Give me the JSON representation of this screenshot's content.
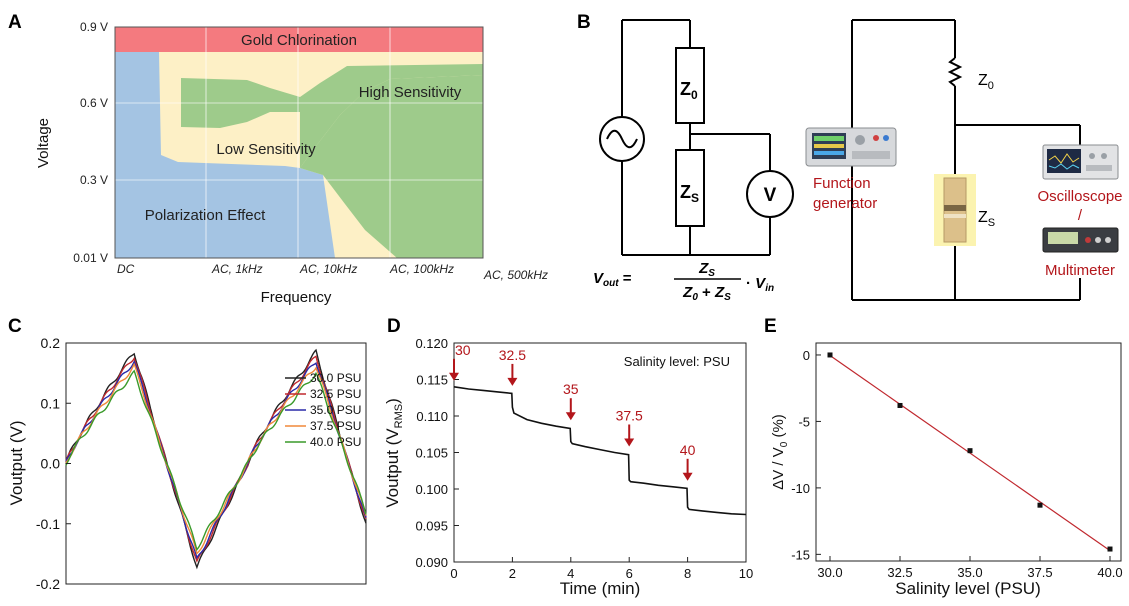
{
  "panels": {
    "A": "A",
    "B": "B",
    "C": "C",
    "D": "D",
    "E": "E"
  },
  "chart_data": [
    {
      "panel": "A",
      "type": "region-map",
      "xlabel": "Frequency",
      "ylabel": "Voltage",
      "xticks": [
        "DC",
        "AC, 1kHz",
        "AC, 10kHz",
        "AC, 100kHz",
        "AC, 500kHz"
      ],
      "yticks": [
        "0.01 V",
        "0.3 V",
        "0.6 V",
        "0.9 V"
      ],
      "regions": [
        {
          "name": "Gold Chlorination",
          "color": "#f47a7f"
        },
        {
          "name": "High Sensitivity",
          "color": "#9ecb8b"
        },
        {
          "name": "Low Sensitivity",
          "color": "#fdf0c6"
        },
        {
          "name": "Polarization Effect",
          "color": "#a4c4e3"
        }
      ]
    },
    {
      "panel": "B",
      "type": "diagram",
      "equation_lhs": "V",
      "equation_lhs_sub": "out",
      "equation_num": "Z",
      "equation_num_sub": "S",
      "equation_den_a": "Z",
      "equation_den_a_sub": "0",
      "equation_den_plus": " + ",
      "equation_den_b": "Z",
      "equation_den_b_sub": "S",
      "equation_vin": "V",
      "equation_vin_sub": "in",
      "z0": "Z",
      "z0_sub": "0",
      "zs": "Z",
      "zs_sub": "S",
      "voltmeter": "V",
      "function_generator": [
        "Function",
        "generator"
      ],
      "oscilloscope": [
        "Oscilloscope",
        "/",
        "Multimeter"
      ]
    },
    {
      "panel": "C",
      "type": "line",
      "ylabel": "Voutput (V)",
      "ylim": [
        -0.2,
        0.2
      ],
      "yticks": [
        "0.2",
        "0.1",
        "0.0",
        "-0.1",
        "-0.2"
      ],
      "series": [
        {
          "name": "30.0 PSU",
          "color": "#222222",
          "peak": 0.185,
          "trough": -0.172
        },
        {
          "name": "32.5 PSU",
          "color": "#c0282e",
          "peak": 0.178,
          "trough": -0.165
        },
        {
          "name": "35.0 PSU",
          "color": "#2a2aa8",
          "peak": 0.17,
          "trough": -0.16
        },
        {
          "name": "37.5 PSU",
          "color": "#f0883a",
          "peak": 0.162,
          "trough": -0.15
        },
        {
          "name": "40.0 PSU",
          "color": "#3a9a2a",
          "peak": 0.15,
          "trough": -0.14
        }
      ]
    },
    {
      "panel": "D",
      "type": "line",
      "xlabel": "Time (min)",
      "ylabel": "Voutput (V",
      "ylabel_sub": "RMS",
      "ylabel_end": ")",
      "xlim": [
        0,
        10
      ],
      "ylim": [
        0.09,
        0.12
      ],
      "xticks": [
        "0",
        "2",
        "4",
        "6",
        "8",
        "10"
      ],
      "yticks": [
        "0.120",
        "0.115",
        "0.110",
        "0.105",
        "0.100",
        "0.095",
        "0.090"
      ],
      "legend_note": "Salinity level: PSU",
      "x": [
        0,
        0.5,
        1,
        1.5,
        1.98,
        2.0,
        2.05,
        2.5,
        3,
        3.5,
        3.98,
        4.0,
        4.05,
        4.5,
        5,
        5.5,
        5.98,
        6.0,
        6.05,
        6.5,
        7,
        7.5,
        7.98,
        8.0,
        8.05,
        8.5,
        9,
        9.5,
        10
      ],
      "y": [
        0.114,
        0.1137,
        0.1135,
        0.1133,
        0.1131,
        0.1112,
        0.1104,
        0.1095,
        0.109,
        0.1086,
        0.1083,
        0.1065,
        0.1062,
        0.1058,
        0.1054,
        0.105,
        0.1047,
        0.1012,
        0.101,
        0.1008,
        0.1005,
        0.1003,
        0.1001,
        0.0975,
        0.0972,
        0.097,
        0.0968,
        0.0966,
        0.0965
      ],
      "annotations": [
        {
          "label": "30",
          "x": 0
        },
        {
          "label": "32.5",
          "x": 2
        },
        {
          "label": "35",
          "x": 4
        },
        {
          "label": "37.5",
          "x": 6
        },
        {
          "label": "40",
          "x": 8
        }
      ]
    },
    {
      "panel": "E",
      "type": "scatter",
      "xlabel": "Salinity level (PSU)",
      "ylabel": "ΔV / V",
      "ylabel_sub": "0",
      "ylabel_end": " (%)",
      "xlim": [
        30,
        40
      ],
      "ylim": [
        -15.5,
        0.9
      ],
      "xticks": [
        "30.0",
        "32.5",
        "35.0",
        "37.5",
        "40.0"
      ],
      "yticks": [
        "0",
        "-5",
        "-10",
        "-15"
      ],
      "x": [
        30.0,
        32.5,
        35.0,
        37.5,
        40.0
      ],
      "y": [
        0.0,
        -3.8,
        -7.2,
        -11.3,
        -14.6
      ],
      "fit_color": "#c0282e"
    }
  ]
}
